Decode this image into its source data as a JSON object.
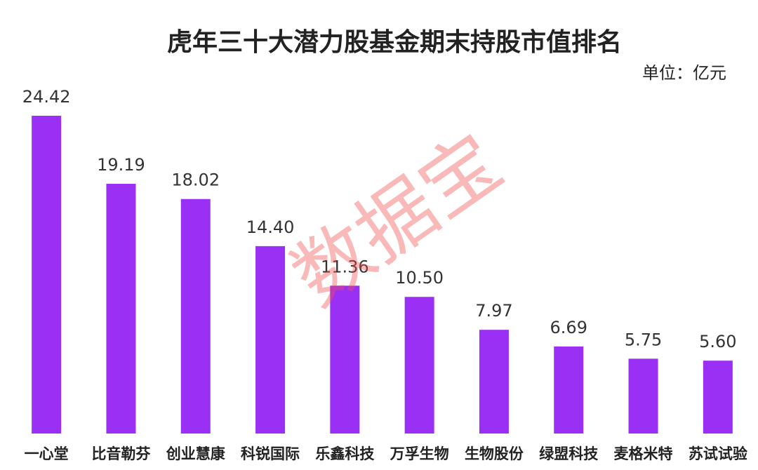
{
  "chart_data": {
    "type": "bar",
    "title": "虎年三十大潜力股基金期末持股市值排名",
    "unit": "单位：亿元",
    "watermark": "数据宝",
    "categories": [
      "一心堂",
      "比音勒芬",
      "创业慧康",
      "科锐国际",
      "乐鑫科技",
      "万孚生物",
      "生物股份",
      "绿盟科技",
      "麦格米特",
      "苏试试验"
    ],
    "values": [
      24.42,
      19.19,
      18.02,
      14.4,
      11.36,
      10.5,
      7.97,
      6.69,
      5.75,
      5.6
    ],
    "value_labels": [
      "24.42",
      "19.19",
      "18.02",
      "14.40",
      "11.36",
      "10.50",
      "7.97",
      "6.69",
      "5.75",
      "5.60"
    ],
    "color": "#9b30f5"
  }
}
